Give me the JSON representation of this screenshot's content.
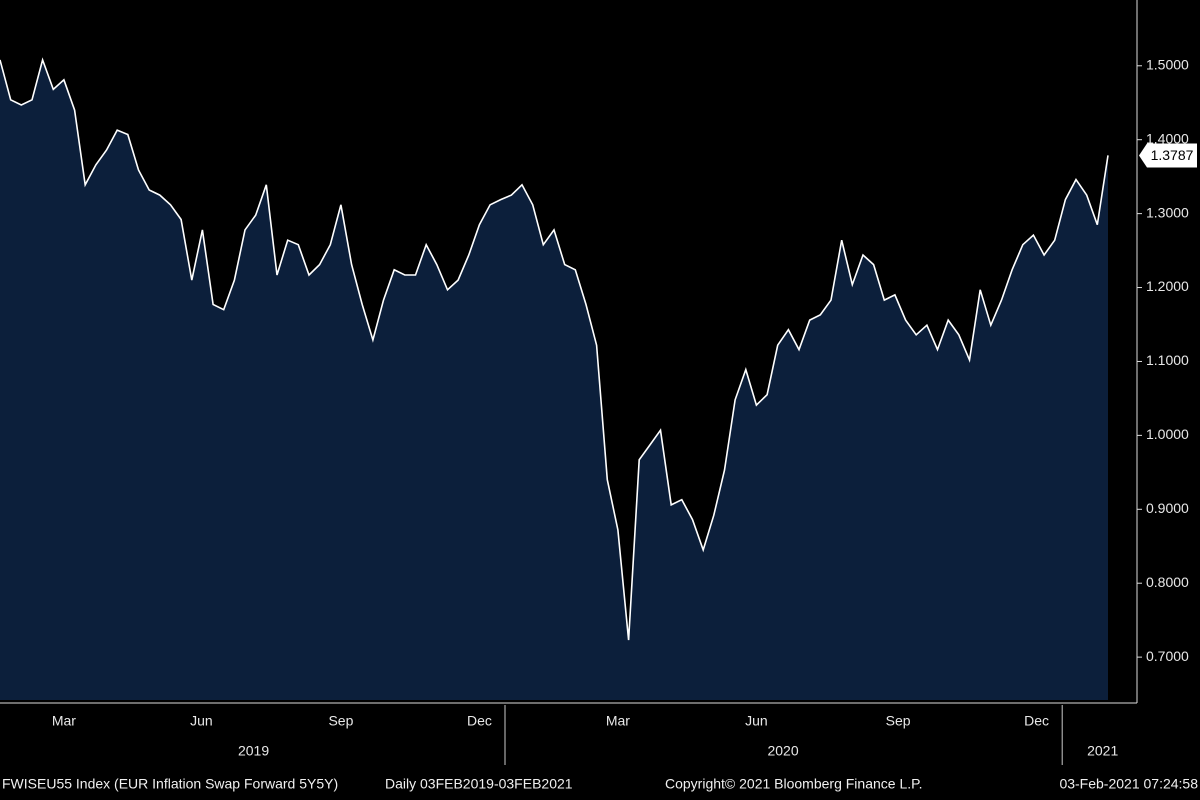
{
  "chart_data": {
    "type": "area",
    "title": "FWISEU55 Index (EUR Inflation Swap Forward 5Y5Y)",
    "subtitle": "Daily 03FEB2019-03FEB2021",
    "source": "Copyright© 2021 Bloomberg Finance L.P.",
    "timestamp": "03-Feb-2021 07:24:58",
    "line_color": "#ffffff",
    "fill_color": "#0c1f3b",
    "values": [
      1.508,
      1.454,
      1.447,
      1.454,
      1.508,
      1.468,
      1.481,
      1.44,
      1.339,
      1.366,
      1.386,
      1.413,
      1.407,
      1.359,
      1.332,
      1.325,
      1.312,
      1.292,
      1.21,
      1.278,
      1.177,
      1.17,
      1.21,
      1.278,
      1.298,
      1.339,
      1.217,
      1.264,
      1.258,
      1.217,
      1.231,
      1.258,
      1.312,
      1.231,
      1.177,
      1.129,
      1.183,
      1.224,
      1.217,
      1.217,
      1.258,
      1.231,
      1.197,
      1.21,
      1.244,
      1.285,
      1.312,
      1.319,
      1.325,
      1.339,
      1.312,
      1.258,
      1.278,
      1.231,
      1.224,
      1.177,
      1.122,
      0.94,
      0.872,
      0.723,
      0.967,
      0.987,
      1.007,
      0.906,
      0.913,
      0.886,
      0.845,
      0.892,
      0.953,
      1.048,
      1.089,
      1.041,
      1.055,
      1.122,
      1.143,
      1.116,
      1.156,
      1.163,
      1.183,
      1.264,
      1.204,
      1.244,
      1.231,
      1.183,
      1.19,
      1.156,
      1.136,
      1.149,
      1.116,
      1.156,
      1.136,
      1.102,
      1.197,
      1.149,
      1.183,
      1.224,
      1.258,
      1.271,
      1.244,
      1.264,
      1.319,
      1.346,
      1.325,
      1.285,
      1.3787
    ],
    "xlim": [
      0,
      104
    ],
    "xticks": [
      {
        "value": 6,
        "label": "Mar"
      },
      {
        "value": 18.9,
        "label": "Jun"
      },
      {
        "value": 32,
        "label": "Sep"
      },
      {
        "value": 45,
        "label": "Dec"
      },
      {
        "value": 58,
        "label": "Mar"
      },
      {
        "value": 71,
        "label": "Jun"
      },
      {
        "value": 84.3,
        "label": "Sep"
      },
      {
        "value": 97.3,
        "label": "Dec"
      }
    ],
    "year_ticks": [
      {
        "value": 23.8,
        "label": "2019"
      },
      {
        "value": 73.5,
        "label": "2020"
      },
      {
        "value": 103.5,
        "label": "2021"
      }
    ],
    "year_dividers": [
      47.4,
      99.7
    ],
    "ylim": [
      0.642,
      1.589
    ],
    "yticks": [
      {
        "value": 0.7,
        "label": "0.7000"
      },
      {
        "value": 0.8,
        "label": "0.8000"
      },
      {
        "value": 0.9,
        "label": "0.9000"
      },
      {
        "value": 1.0,
        "label": "1.0000"
      },
      {
        "value": 1.1,
        "label": "1.1000"
      },
      {
        "value": 1.2,
        "label": "1.2000"
      },
      {
        "value": 1.3,
        "label": "1.3000"
      },
      {
        "value": 1.4,
        "label": "1.4000"
      },
      {
        "value": 1.5,
        "label": "1.5000"
      }
    ]
  }
}
